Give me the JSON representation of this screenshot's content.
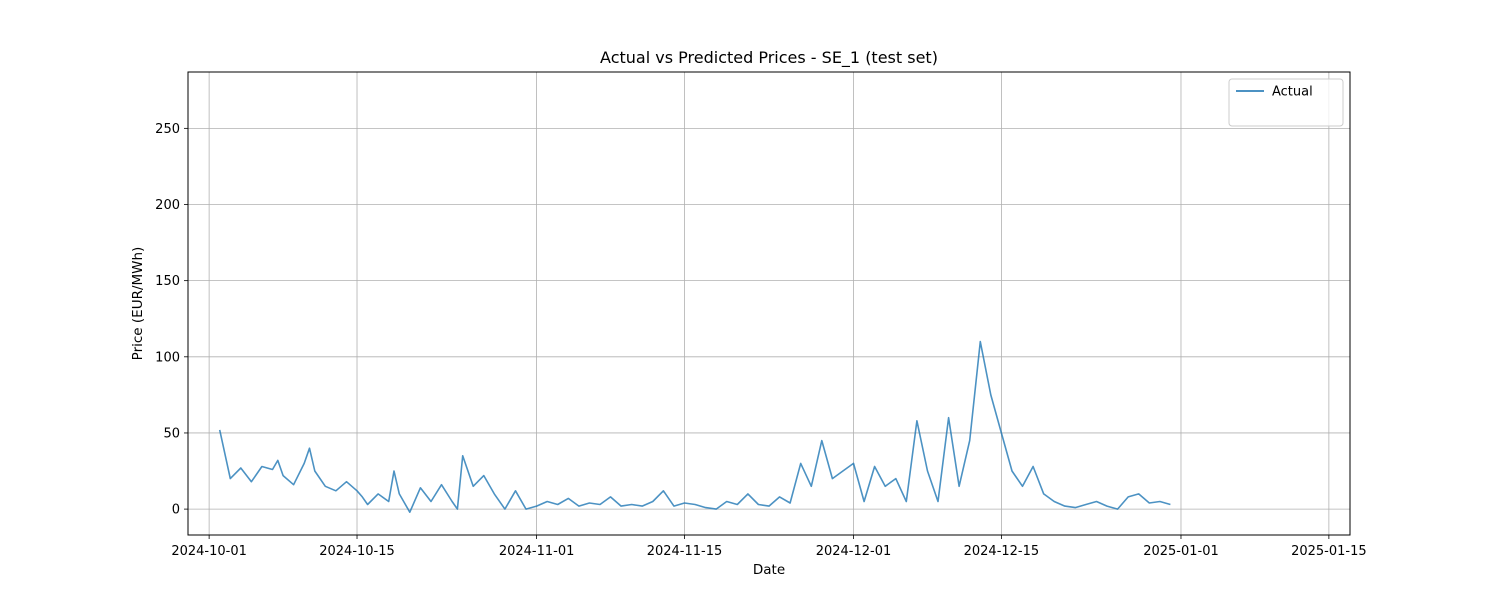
{
  "chart_data": {
    "type": "line",
    "title": "Actual vs Predicted Prices - SE_1 (test set)",
    "xlabel": "Date",
    "ylabel": "Price (EUR/MWh)",
    "xlim": [
      "2024-09-29",
      "2025-01-17"
    ],
    "ylim": [
      -17,
      287
    ],
    "x_ticks": [
      "2024-10-01",
      "2024-10-15",
      "2024-11-01",
      "2024-11-15",
      "2024-12-01",
      "2024-12-15",
      "2025-01-01",
      "2025-01-15"
    ],
    "y_ticks": [
      0,
      50,
      100,
      150,
      200,
      250
    ],
    "grid": true,
    "legend_position": "top-right",
    "series": [
      {
        "name": "Actual",
        "color": "#1f77b4",
        "points": [
          [
            "2024-10-02",
            52
          ],
          [
            "2024-10-03",
            20
          ],
          [
            "2024-10-04",
            27
          ],
          [
            "2024-10-05",
            18
          ],
          [
            "2024-10-06",
            28
          ],
          [
            "2024-10-07",
            26
          ],
          [
            "2024-10-07T12",
            32
          ],
          [
            "2024-10-08",
            22
          ],
          [
            "2024-10-09",
            16
          ],
          [
            "2024-10-10",
            30
          ],
          [
            "2024-10-10T12",
            40
          ],
          [
            "2024-10-11",
            25
          ],
          [
            "2024-10-12",
            15
          ],
          [
            "2024-10-13",
            12
          ],
          [
            "2024-10-14",
            18
          ],
          [
            "2024-10-15",
            12
          ],
          [
            "2024-10-15T12",
            8
          ],
          [
            "2024-10-16",
            3
          ],
          [
            "2024-10-17",
            10
          ],
          [
            "2024-10-18",
            5
          ],
          [
            "2024-10-18T12",
            25
          ],
          [
            "2024-10-19",
            10
          ],
          [
            "2024-10-20",
            -2
          ],
          [
            "2024-10-21",
            14
          ],
          [
            "2024-10-22",
            5
          ],
          [
            "2024-10-23",
            16
          ],
          [
            "2024-10-24",
            5
          ],
          [
            "2024-10-24T12",
            0
          ],
          [
            "2024-10-25",
            35
          ],
          [
            "2024-10-26",
            15
          ],
          [
            "2024-10-27",
            22
          ],
          [
            "2024-10-28",
            10
          ],
          [
            "2024-10-29",
            0
          ],
          [
            "2024-10-30",
            12
          ],
          [
            "2024-10-31",
            0
          ],
          [
            "2024-11-01",
            2
          ],
          [
            "2024-11-02",
            5
          ],
          [
            "2024-11-03",
            3
          ],
          [
            "2024-11-04",
            7
          ],
          [
            "2024-11-05",
            2
          ],
          [
            "2024-11-06",
            4
          ],
          [
            "2024-11-07",
            3
          ],
          [
            "2024-11-08",
            8
          ],
          [
            "2024-11-09",
            2
          ],
          [
            "2024-11-10",
            3
          ],
          [
            "2024-11-11",
            2
          ],
          [
            "2024-11-12",
            5
          ],
          [
            "2024-11-13",
            12
          ],
          [
            "2024-11-14",
            2
          ],
          [
            "2024-11-15",
            4
          ],
          [
            "2024-11-16",
            3
          ],
          [
            "2024-11-17",
            1
          ],
          [
            "2024-11-18",
            0
          ],
          [
            "2024-11-19",
            5
          ],
          [
            "2024-11-20",
            3
          ],
          [
            "2024-11-21",
            10
          ],
          [
            "2024-11-22",
            3
          ],
          [
            "2024-11-23",
            2
          ],
          [
            "2024-11-24",
            8
          ],
          [
            "2024-11-25",
            4
          ],
          [
            "2024-11-26",
            30
          ],
          [
            "2024-11-27",
            15
          ],
          [
            "2024-11-28",
            45
          ],
          [
            "2024-11-29",
            20
          ],
          [
            "2024-11-30",
            25
          ],
          [
            "2024-12-01",
            30
          ],
          [
            "2024-12-02",
            5
          ],
          [
            "2024-12-03",
            28
          ],
          [
            "2024-12-04",
            15
          ],
          [
            "2024-12-05",
            20
          ],
          [
            "2024-12-06",
            5
          ],
          [
            "2024-12-07",
            58
          ],
          [
            "2024-12-08",
            25
          ],
          [
            "2024-12-09",
            5
          ],
          [
            "2024-12-10",
            60
          ],
          [
            "2024-12-11",
            15
          ],
          [
            "2024-12-12",
            45
          ],
          [
            "2024-12-13",
            110
          ],
          [
            "2024-12-14",
            75
          ],
          [
            "2024-12-15",
            50
          ],
          [
            "2024-12-16",
            25
          ],
          [
            "2024-12-17",
            15
          ],
          [
            "2024-12-18",
            28
          ],
          [
            "2024-12-19",
            10
          ],
          [
            "2024-12-20",
            5
          ],
          [
            "2024-12-21",
            2
          ],
          [
            "2024-12-22",
            1
          ],
          [
            "2024-12-23",
            3
          ],
          [
            "2024-12-24",
            5
          ],
          [
            "2024-12-25",
            2
          ],
          [
            "2024-12-26",
            0
          ],
          [
            "2024-12-27",
            8
          ],
          [
            "2024-12-28",
            10
          ],
          [
            "2024-12-29",
            4
          ],
          [
            "2024-12-30",
            5
          ],
          [
            "2024-12-31",
            3
          ]
        ]
      }
    ]
  }
}
